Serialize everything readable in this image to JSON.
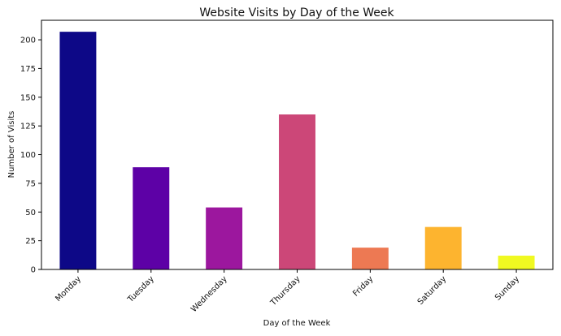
{
  "chart_data": {
    "type": "bar",
    "title": "Website Visits by Day of the Week",
    "xlabel": "Day of the Week",
    "ylabel": "Number of Visits",
    "categories": [
      "Monday",
      "Tuesday",
      "Wednesday",
      "Thursday",
      "Friday",
      "Saturday",
      "Sunday"
    ],
    "values": [
      207,
      89,
      54,
      135,
      19,
      37,
      12
    ],
    "colors": [
      "#0d0887",
      "#5d01a6",
      "#9c179e",
      "#cc4778",
      "#ed7953",
      "#fdb42f",
      "#f0f921"
    ],
    "ylim": [
      0,
      217
    ],
    "yticks": [
      0,
      25,
      50,
      75,
      100,
      125,
      150,
      175,
      200
    ],
    "grid": false,
    "legend": "none"
  }
}
